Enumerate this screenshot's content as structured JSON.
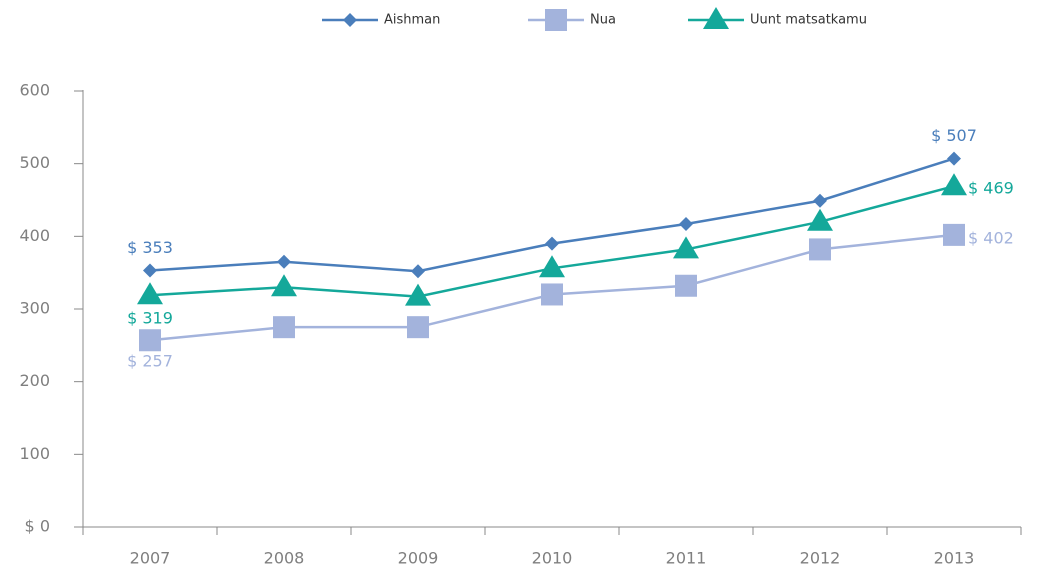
{
  "chart_data": {
    "type": "line",
    "categories": [
      "2007",
      "2008",
      "2009",
      "2010",
      "2011",
      "2012",
      "2013"
    ],
    "series": [
      {
        "name": "Aishman",
        "color": "#4a7ebb",
        "marker": "diamond",
        "values": [
          353,
          365,
          352,
          390,
          417,
          449,
          507
        ],
        "value_labels": [
          "$ 353",
          null,
          null,
          null,
          null,
          null,
          "$ 507"
        ]
      },
      {
        "name": "Nua",
        "color": "#a3b3dc",
        "marker": "square",
        "values": [
          257,
          275,
          275,
          320,
          332,
          382,
          402
        ],
        "value_labels": [
          "$ 257",
          null,
          null,
          null,
          null,
          null,
          "$ 402"
        ]
      },
      {
        "name": "Uunt matsatkamu",
        "color": "#14a89a",
        "marker": "triangle",
        "values": [
          319,
          330,
          317,
          356,
          382,
          420,
          469
        ],
        "value_labels": [
          "$ 319",
          null,
          null,
          null,
          null,
          null,
          "$ 469"
        ]
      }
    ],
    "ylim": [
      0,
      600
    ],
    "yticks": [
      {
        "value": 0,
        "label": "$ 0"
      },
      100,
      200,
      300,
      400,
      500,
      600
    ],
    "grid": false,
    "legend": "top"
  }
}
